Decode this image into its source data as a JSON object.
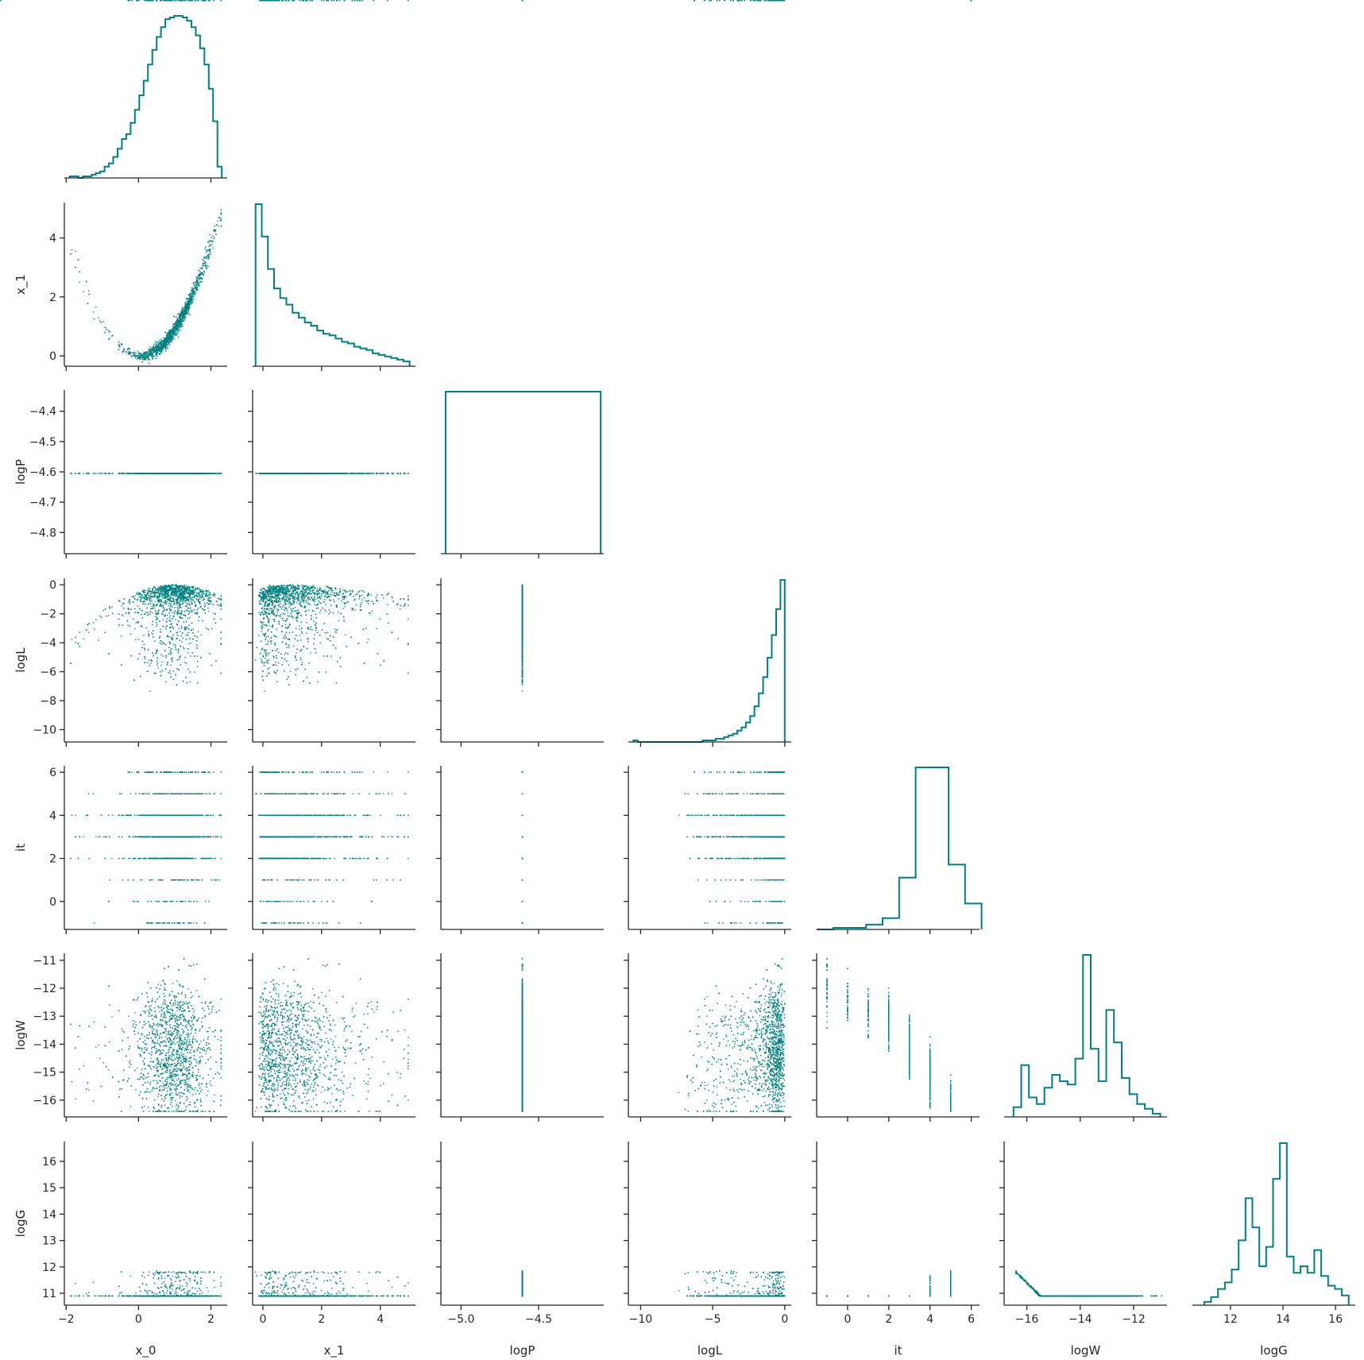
{
  "chart_data": {
    "type": "corner-pairplot",
    "color": "#008080",
    "variables": [
      "x_0",
      "x_1",
      "logP",
      "logL",
      "it",
      "logW",
      "logG"
    ],
    "axes": {
      "x_0": {
        "range": [
          -2.05,
          2.45
        ],
        "ticks": [
          -2,
          0,
          2
        ],
        "tick_labels": [
          "−2",
          "0",
          "2"
        ]
      },
      "x_1": {
        "range": [
          -0.35,
          5.2
        ],
        "ticks": [
          0,
          2,
          4
        ],
        "tick_labels": [
          "0",
          "2",
          "4"
        ]
      },
      "logP": {
        "range": [
          -5.13,
          -4.08
        ],
        "ticks": [
          -5.0,
          -4.5
        ],
        "tick_labels": [
          "−5.0",
          "−4.5"
        ],
        "y_range": [
          -4.87,
          -4.33
        ],
        "y_ticks": [
          -4.8,
          -4.7,
          -4.6,
          -4.5,
          -4.4
        ],
        "y_tick_labels": [
          "−4.8",
          "−4.7",
          "−4.6",
          "−4.5",
          "−4.4"
        ]
      },
      "logL": {
        "range": [
          -10.85,
          0.45
        ],
        "ticks": [
          -10,
          -5,
          0
        ],
        "tick_labels": [
          "−10",
          "−5",
          "0"
        ],
        "y_ticks": [
          -10,
          -8,
          -6,
          -4,
          -2,
          0
        ],
        "y_tick_labels": [
          "−10",
          "−8",
          "−6",
          "−4",
          "−2",
          "0"
        ]
      },
      "it": {
        "range": [
          -1.5,
          6.4
        ],
        "ticks": [
          0,
          2,
          4,
          6
        ],
        "tick_labels": [
          "0",
          "2",
          "4",
          "6"
        ],
        "y_range": [
          -1.3,
          6.3
        ],
        "y_ticks": [
          0,
          2,
          4,
          6
        ],
        "y_tick_labels": [
          "0",
          "2",
          "4",
          "6"
        ]
      },
      "logW": {
        "range": [
          -16.85,
          -10.75
        ],
        "ticks": [
          -16,
          -14,
          -12
        ],
        "tick_labels": [
          "−16",
          "−14",
          "−12"
        ],
        "y_range": [
          -16.6,
          -10.75
        ],
        "y_ticks": [
          -16,
          -15,
          -14,
          -13,
          -12,
          -11
        ],
        "y_tick_labels": [
          "−16",
          "−15",
          "−14",
          "−13",
          "−12",
          "−11"
        ]
      },
      "logG": {
        "range": [
          10.55,
          16.75
        ],
        "ticks": [
          12,
          14,
          16
        ],
        "tick_labels": [
          "12",
          "14",
          "16"
        ],
        "y_ticks": [
          11,
          12,
          13,
          14,
          15,
          16
        ],
        "y_tick_labels": [
          "11",
          "12",
          "13",
          "14",
          "15",
          "16"
        ]
      }
    },
    "histograms": {
      "x_0": {
        "edges_range": [
          -1.9,
          2.3
        ],
        "counts": [
          1,
          1,
          0,
          1,
          1,
          2,
          3,
          4,
          7,
          9,
          13,
          18,
          24,
          27,
          34,
          42,
          51,
          60,
          70,
          79,
          87,
          93,
          98,
          99,
          100,
          100,
          99,
          97,
          93,
          88,
          80,
          70,
          55,
          35,
          7
        ]
      },
      "x_1": {
        "edges_range": [
          -0.25,
          5.0
        ],
        "counts": [
          100,
          80,
          60,
          48,
          42,
          38,
          33,
          30,
          27,
          25,
          22,
          20,
          19,
          17,
          15,
          14,
          12,
          11,
          10,
          8,
          7,
          6,
          5,
          4,
          3
        ]
      },
      "logP": {
        "edges_range": [
          -5.1,
          -4.1
        ],
        "counts": [
          100
        ]
      },
      "logL": {
        "edges_range": [
          -10.5,
          0.0
        ],
        "counts": [
          1,
          0,
          0,
          0,
          0,
          0,
          0,
          0,
          0,
          0,
          0,
          0,
          0,
          0,
          0,
          0,
          1,
          1,
          1,
          2,
          2,
          3,
          4,
          5,
          7,
          9,
          12,
          16,
          22,
          30,
          40,
          52,
          66,
          82,
          100
        ]
      },
      "it": {
        "edges_range": [
          -1.5,
          6.5
        ],
        "counts": [
          0,
          1,
          1,
          3,
          7,
          32,
          100,
          100,
          40,
          16
        ]
      },
      "logW": {
        "edges_range": [
          -16.5,
          -11.0
        ],
        "counts": [
          6,
          32,
          12,
          8,
          18,
          26,
          22,
          20,
          36,
          100,
          42,
          22,
          66,
          46,
          24,
          14,
          8,
          5,
          2
        ]
      },
      "logG": {
        "edges_range": [
          11.0,
          16.5
        ],
        "counts": [
          2,
          5,
          10,
          14,
          22,
          40,
          66,
          48,
          24,
          36,
          78,
          100,
          30,
          20,
          24,
          20,
          34,
          18,
          12,
          10,
          6
        ]
      }
    },
    "scatter": "seaborn corner pairplot of 7 sampled variables; each lower-triangle panel is a scatter of the row variable (y) against the column variable (x)"
  }
}
